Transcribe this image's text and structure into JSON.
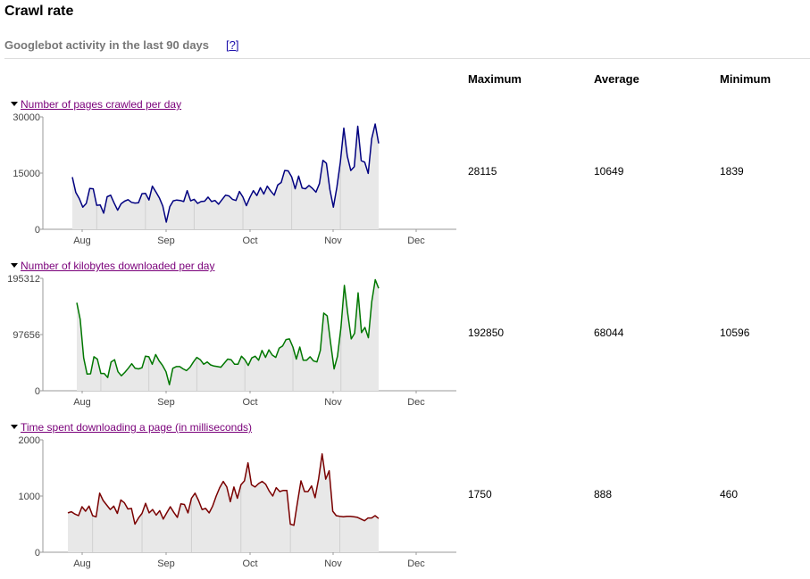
{
  "page": {
    "title": "Crawl rate",
    "subtitle": "Googlebot activity in the last 90 days",
    "help_link": "[?]",
    "columns": {
      "maximum": "Maximum",
      "average": "Average",
      "minimum": "Minimum"
    }
  },
  "sections": [
    {
      "title": "Number of pages crawled per day",
      "maximum": "28115",
      "average": "10649",
      "minimum": "1839",
      "color": "#000080"
    },
    {
      "title": "Number of kilobytes downloaded per day",
      "maximum": "192850",
      "average": "68044",
      "minimum": "10596",
      "color": "#007700"
    },
    {
      "title": "Time spent downloading a page (in milliseconds)",
      "maximum": "1750",
      "average": "888",
      "minimum": "460",
      "color": "#7a0000"
    }
  ],
  "chart_data": [
    {
      "type": "area",
      "title": "Number of pages crawled per day",
      "x_tick_labels": [
        "Aug",
        "Sep",
        "Oct",
        "Nov",
        "Dec"
      ],
      "y_tick_labels": [
        "0",
        "15000",
        "30000"
      ],
      "ylim": [
        0,
        30000
      ],
      "color": "#000080",
      "values": [
        13900,
        9800,
        8200,
        5900,
        6900,
        10900,
        10800,
        6400,
        6500,
        4300,
        8700,
        9100,
        7000,
        5100,
        6800,
        7500,
        7900,
        7200,
        7000,
        7100,
        9500,
        9600,
        7800,
        11500,
        10000,
        8400,
        6200,
        1900,
        6000,
        7600,
        7800,
        7700,
        7400,
        10300,
        7600,
        8000,
        6900,
        7400,
        7500,
        8600,
        7400,
        7700,
        6700,
        7900,
        9100,
        8900,
        8000,
        7700,
        10100,
        8600,
        6300,
        8500,
        10300,
        9000,
        11100,
        9400,
        11500,
        10200,
        9100,
        11800,
        12500,
        15700,
        15600,
        14000,
        10800,
        14200,
        11000,
        10800,
        11700,
        10900,
        9900,
        12200,
        18400,
        17600,
        10600,
        5900,
        11200,
        17900,
        27000,
        19500,
        15700,
        16700,
        27500,
        18300,
        17900,
        14900,
        24200,
        28100,
        22900
      ]
    },
    {
      "type": "area",
      "title": "Number of kilobytes downloaded per day",
      "x_tick_labels": [
        "Aug",
        "Sep",
        "Oct",
        "Nov",
        "Dec"
      ],
      "y_tick_labels": [
        "0",
        "97656",
        "195312"
      ],
      "ylim": [
        0,
        195312
      ],
      "color": "#007700",
      "values": [
        153000,
        124000,
        57000,
        29000,
        29500,
        59000,
        55000,
        30000,
        30000,
        23000,
        50000,
        54000,
        33000,
        26000,
        32000,
        39000,
        47000,
        39000,
        38000,
        40000,
        60000,
        59000,
        46000,
        63000,
        52000,
        44000,
        33000,
        10600,
        39000,
        42000,
        42000,
        38000,
        35000,
        41000,
        50000,
        58000,
        54000,
        46000,
        50000,
        45000,
        43000,
        42000,
        41000,
        48000,
        55000,
        54000,
        46000,
        46000,
        60000,
        54000,
        44000,
        57000,
        60000,
        53000,
        70000,
        58000,
        71000,
        62000,
        58000,
        74000,
        78000,
        89000,
        90000,
        76000,
        55000,
        76000,
        53000,
        53000,
        59000,
        52000,
        50000,
        70000,
        135000,
        130000,
        83000,
        38000,
        60000,
        110000,
        183000,
        134000,
        90000,
        100000,
        170000,
        101000,
        110000,
        92000,
        155000,
        193000,
        178000
      ]
    },
    {
      "type": "area",
      "title": "Time spent downloading a page (in milliseconds)",
      "x_tick_labels": [
        "Aug",
        "Sep",
        "Oct",
        "Nov",
        "Dec"
      ],
      "y_tick_labels": [
        "0",
        "1000",
        "2000"
      ],
      "ylim": [
        0,
        2000
      ],
      "color": "#7a0000",
      "values": [
        700,
        720,
        680,
        650,
        810,
        730,
        820,
        650,
        630,
        1050,
        920,
        840,
        760,
        820,
        690,
        930,
        880,
        770,
        780,
        500,
        610,
        690,
        870,
        700,
        760,
        660,
        740,
        590,
        700,
        810,
        710,
        620,
        860,
        850,
        700,
        960,
        1050,
        920,
        760,
        780,
        700,
        820,
        1000,
        1150,
        1260,
        1160,
        900,
        1160,
        960,
        1200,
        1270,
        1590,
        1200,
        1160,
        1220,
        1260,
        1210,
        1090,
        1000,
        1150,
        1080,
        1100,
        1100,
        500,
        480,
        880,
        1270,
        1080,
        1080,
        1180,
        970,
        1310,
        1750,
        1300,
        1450,
        730,
        650,
        640,
        630,
        640,
        640,
        630,
        620,
        590,
        560,
        610,
        610,
        650,
        600
      ]
    }
  ]
}
